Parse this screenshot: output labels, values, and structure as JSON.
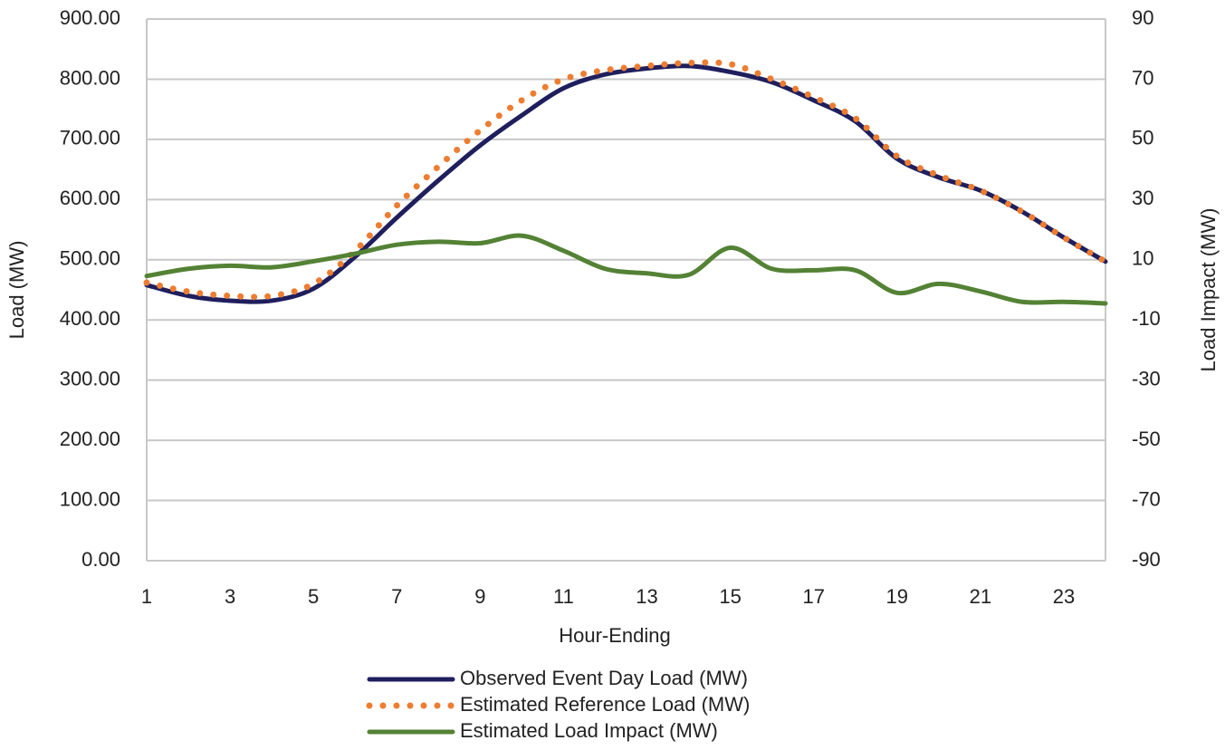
{
  "chart_data": {
    "type": "line",
    "x_label": "Hour-Ending",
    "y_label": "Load (MW)",
    "y2_label": "Load Impact (MW)",
    "x": [
      1,
      2,
      3,
      4,
      5,
      6,
      7,
      8,
      9,
      10,
      11,
      12,
      13,
      14,
      15,
      16,
      17,
      18,
      19,
      20,
      21,
      22,
      23,
      24
    ],
    "xlim": [
      1,
      24
    ],
    "xticks": [
      1,
      3,
      5,
      7,
      9,
      11,
      13,
      15,
      17,
      19,
      21,
      23
    ],
    "ylim": [
      0,
      900
    ],
    "yticks": [
      {
        "value": 0,
        "label": "0.00"
      },
      {
        "value": 100,
        "label": "100.00"
      },
      {
        "value": 200,
        "label": "200.00"
      },
      {
        "value": 300,
        "label": "300.00"
      },
      {
        "value": 400,
        "label": "400.00"
      },
      {
        "value": 500,
        "label": "500.00"
      },
      {
        "value": 600,
        "label": "600.00"
      },
      {
        "value": 700,
        "label": "700.00"
      },
      {
        "value": 800,
        "label": "800.00"
      },
      {
        "value": 900,
        "label": "900.00"
      }
    ],
    "y2lim": [
      -90,
      90
    ],
    "y2ticks": [
      -90,
      -70,
      -50,
      -30,
      -10,
      10,
      30,
      50,
      70,
      90
    ],
    "grid": true,
    "legend": "bottom",
    "series": [
      {
        "name": "Observed Event Day Load (MW)",
        "color": "#1f1f5e",
        "style": "solid",
        "values": [
          458,
          440,
          432,
          432,
          452,
          505,
          570,
          632,
          690,
          740,
          785,
          808,
          818,
          822,
          812,
          795,
          765,
          730,
          668,
          637,
          615,
          580,
          537,
          497
        ]
      },
      {
        "name": "Estimated Reference Load (MW)",
        "color": "#ed7d31",
        "style": "dotted",
        "values": [
          462,
          447,
          440,
          440,
          460,
          515,
          590,
          655,
          715,
          765,
          800,
          815,
          822,
          827,
          825,
          800,
          770,
          735,
          672,
          640,
          615,
          580,
          537,
          497
        ]
      },
      {
        "name": "Estimated Load Impact (MW)",
        "color": "#548235",
        "style": "solid",
        "axis": "y2",
        "values": [
          4.6,
          7,
          8,
          7.5,
          9.5,
          12,
          15,
          16,
          15.5,
          18,
          13,
          7,
          5.5,
          5,
          14,
          7,
          6.5,
          6.5,
          -1,
          2,
          -0.5,
          -4,
          -4,
          -4.5
        ]
      }
    ]
  }
}
